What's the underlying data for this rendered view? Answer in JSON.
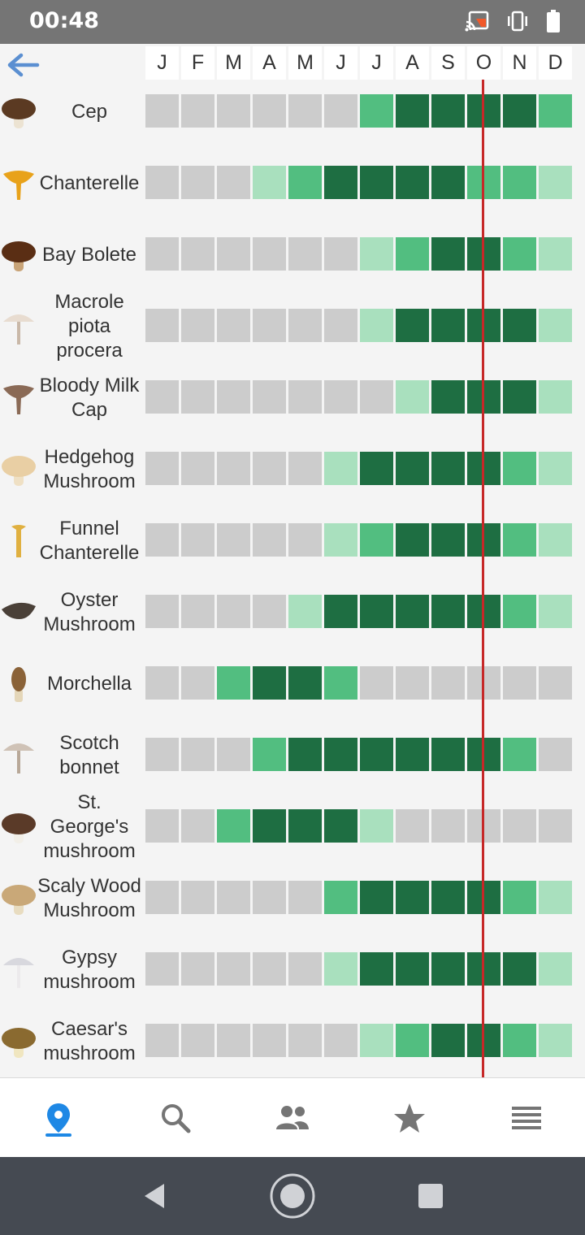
{
  "status_bar": {
    "time": "00:48",
    "icons": [
      "cast-icon",
      "vibrate-icon",
      "battery-icon"
    ]
  },
  "header": {
    "back_icon": "arrow-left-icon",
    "months": [
      "J",
      "F",
      "M",
      "A",
      "M",
      "J",
      "J",
      "A",
      "S",
      "O",
      "N",
      "D"
    ],
    "current_month_index": 9
  },
  "legend_colors": {
    "none": "#cccccc",
    "low": "#a9e0be",
    "medium": "#52be80",
    "high": "#1e6e42",
    "current_line": "#c62828"
  },
  "species": [
    {
      "name": "Cep",
      "icon": "cep-mushroom-icon",
      "season": [
        0,
        0,
        0,
        0,
        0,
        0,
        2,
        3,
        3,
        3,
        3,
        2
      ]
    },
    {
      "name": "Chanterelle",
      "icon": "chanterelle-mushroom-icon",
      "season": [
        0,
        0,
        0,
        1,
        2,
        3,
        3,
        3,
        3,
        2,
        2,
        1
      ]
    },
    {
      "name": "Bay Bolete",
      "icon": "bay-bolete-mushroom-icon",
      "season": [
        0,
        0,
        0,
        0,
        0,
        0,
        1,
        2,
        3,
        3,
        2,
        1
      ]
    },
    {
      "name": "Macrole piota procera",
      "icon": "parasol-mushroom-icon",
      "season": [
        0,
        0,
        0,
        0,
        0,
        0,
        1,
        3,
        3,
        3,
        3,
        1
      ]
    },
    {
      "name": "Bloody Milk Cap",
      "icon": "milk-cap-mushroom-icon",
      "season": [
        0,
        0,
        0,
        0,
        0,
        0,
        0,
        1,
        3,
        3,
        3,
        1
      ]
    },
    {
      "name": "Hedgehog Mushroom",
      "icon": "hedgehog-mushroom-icon",
      "season": [
        0,
        0,
        0,
        0,
        0,
        1,
        3,
        3,
        3,
        3,
        2,
        1
      ]
    },
    {
      "name": "Funnel Chanterelle",
      "icon": "funnel-chanterelle-icon",
      "season": [
        0,
        0,
        0,
        0,
        0,
        1,
        2,
        3,
        3,
        3,
        2,
        1
      ]
    },
    {
      "name": "Oyster Mushroom",
      "icon": "oyster-mushroom-icon",
      "season": [
        0,
        0,
        0,
        0,
        1,
        3,
        3,
        3,
        3,
        3,
        2,
        1
      ]
    },
    {
      "name": "Morchella",
      "icon": "morel-mushroom-icon",
      "season": [
        0,
        0,
        2,
        3,
        3,
        2,
        0,
        0,
        0,
        0,
        0,
        0
      ]
    },
    {
      "name": "Scotch bonnet",
      "icon": "scotch-bonnet-mushroom-icon",
      "season": [
        0,
        0,
        0,
        2,
        3,
        3,
        3,
        3,
        3,
        3,
        2,
        0
      ]
    },
    {
      "name": "St. George's mushroom",
      "icon": "st-georges-mushroom-icon",
      "season": [
        0,
        0,
        2,
        3,
        3,
        3,
        1,
        0,
        0,
        0,
        0,
        0
      ]
    },
    {
      "name": "Scaly Wood Mushroom",
      "icon": "scaly-wood-mushroom-icon",
      "season": [
        0,
        0,
        0,
        0,
        0,
        2,
        3,
        3,
        3,
        3,
        2,
        1
      ]
    },
    {
      "name": "Gypsy mushroom",
      "icon": "gypsy-mushroom-icon",
      "season": [
        0,
        0,
        0,
        0,
        0,
        1,
        3,
        3,
        3,
        3,
        3,
        1
      ]
    },
    {
      "name": "Caesar's mushroom",
      "icon": "caesars-mushroom-icon",
      "season": [
        0,
        0,
        0,
        0,
        0,
        0,
        1,
        2,
        3,
        3,
        2,
        1
      ]
    }
  ],
  "bottom_nav": {
    "items": [
      {
        "name": "map",
        "icon": "location-pin-icon",
        "active": true
      },
      {
        "name": "search",
        "icon": "search-icon",
        "active": false
      },
      {
        "name": "community",
        "icon": "people-icon",
        "active": false
      },
      {
        "name": "favorites",
        "icon": "star-icon",
        "active": false
      },
      {
        "name": "menu",
        "icon": "list-icon",
        "active": false
      }
    ],
    "active_color": "#1e88e5",
    "inactive_color": "#757575"
  },
  "system_nav": [
    "back-triangle-icon",
    "home-circle-icon",
    "recents-square-icon"
  ]
}
